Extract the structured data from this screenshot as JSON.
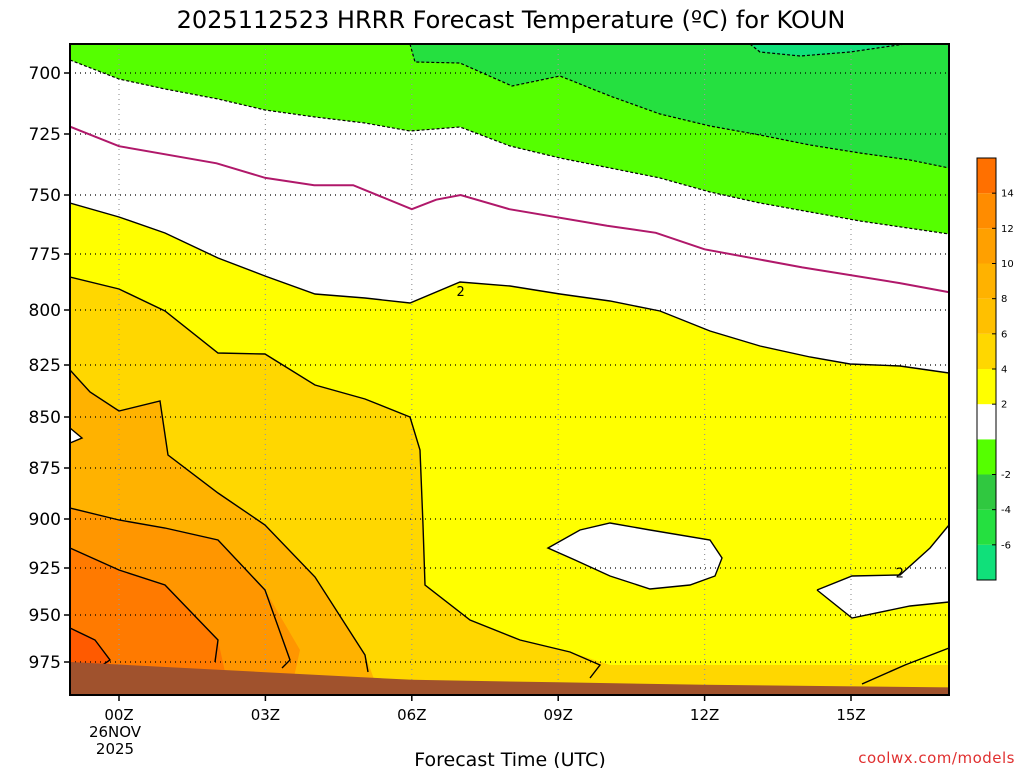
{
  "page": {
    "title": "2025112523 HRRR Forecast Temperature (ºC) for KOUN",
    "credit": "coolwx.com/models"
  },
  "colors": {
    "white_band": "#ffffff",
    "green_light": "#55ff00",
    "green_mid": "#25e040",
    "green_teal": "#10e07a",
    "yellow": "#ffff00",
    "gold": "#ffd700",
    "orange_light": "#ffb200",
    "orange": "#ff9600",
    "orange_dark": "#ff7a00",
    "red_orange": "#ff5a00",
    "ground": "#a0522d",
    "freezing_line": "#b0186a"
  },
  "chart_data": {
    "type": "contour",
    "title": "2025112523 HRRR Forecast Temperature (ºC) for KOUN",
    "xlabel": "Forecast Time (UTC)",
    "ylabel": "",
    "x_unit": "forecast hour",
    "xlim": [
      -1,
      17
    ],
    "ylim_pressure_hpa": [
      988,
      687
    ],
    "x_ticks": [
      {
        "hour": 0,
        "label": "00Z",
        "sublabels": [
          "26NOV",
          "2025"
        ]
      },
      {
        "hour": 3,
        "label": "03Z"
      },
      {
        "hour": 6,
        "label": "06Z"
      },
      {
        "hour": 9,
        "label": "09Z"
      },
      {
        "hour": 12,
        "label": "12Z"
      },
      {
        "hour": 15,
        "label": "15Z"
      }
    ],
    "y_ticks": [
      700,
      725,
      750,
      775,
      800,
      825,
      850,
      875,
      900,
      925,
      950,
      975
    ],
    "grid": true,
    "contour_labels": [
      {
        "text": "2",
        "hour": 7.0,
        "p": 792
      },
      {
        "text": "2",
        "hour": 16.0,
        "p": 928
      }
    ],
    "zero_isotherm": [
      [
        -1,
        722
      ],
      [
        0,
        730
      ],
      [
        2,
        737
      ],
      [
        3,
        743
      ],
      [
        4,
        746
      ],
      [
        4.8,
        746
      ],
      [
        6,
        756
      ],
      [
        6.5,
        752
      ],
      [
        7,
        750
      ],
      [
        8,
        756
      ],
      [
        10,
        763
      ],
      [
        11,
        766
      ],
      [
        12,
        773
      ],
      [
        14,
        781
      ],
      [
        16,
        788
      ],
      [
        17,
        792
      ]
    ],
    "ground_pressure_hpa": [
      [
        -1,
        975
      ],
      [
        3,
        979
      ],
      [
        6,
        982
      ],
      [
        9,
        983
      ],
      [
        12,
        984
      ],
      [
        17,
        985
      ]
    ],
    "colorbar": {
      "levels": [
        -8,
        -6,
        -4,
        -2,
        0,
        2,
        4,
        6,
        8,
        10,
        12,
        14,
        16
      ],
      "colors": [
        "#10e07a",
        "#25e040",
        "#30c840",
        "#55ff00",
        "#ffffff",
        "#ffff00",
        "#ffd700",
        "#ffc000",
        "#ffb200",
        "#ffa000",
        "#ff8c00",
        "#ff7000"
      ],
      "tick_labels": [
        "-6",
        "-4",
        "-2",
        "2",
        "4",
        "6",
        "8",
        "10",
        "12",
        "14"
      ]
    }
  }
}
